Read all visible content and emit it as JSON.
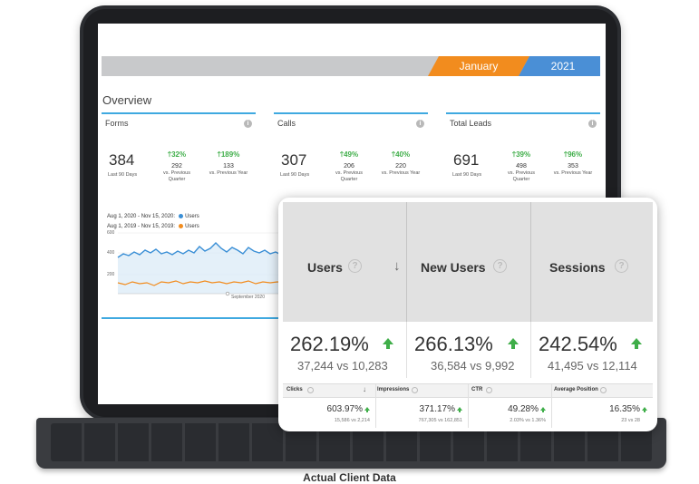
{
  "date_bar": {
    "month": "January",
    "year": "2021"
  },
  "overview": {
    "title": "Overview",
    "cards": [
      {
        "name": "Forms",
        "value": "384",
        "sub": "Last 90 Days",
        "cols": [
          {
            "pct": "32%",
            "num": "292",
            "lbl": "vs. Previous Quarter"
          },
          {
            "pct": "189%",
            "num": "133",
            "lbl": "vs. Previous Year"
          }
        ]
      },
      {
        "name": "Calls",
        "value": "307",
        "sub": "Last 90 Days",
        "cols": [
          {
            "pct": "49%",
            "num": "206",
            "lbl": "vs. Previous Quarter"
          },
          {
            "pct": "40%",
            "num": "220",
            "lbl": "vs. Previous Year"
          }
        ]
      },
      {
        "name": "Total Leads",
        "value": "691",
        "sub": "Last 90 Days",
        "cols": [
          {
            "pct": "39%",
            "num": "498",
            "lbl": "vs. Previous Quarter"
          },
          {
            "pct": "96%",
            "num": "353",
            "lbl": "vs. Previous Year"
          }
        ]
      }
    ],
    "info_glyph": "i"
  },
  "chart": {
    "legend": [
      {
        "range": "Aug 1, 2020 - Nov 15, 2020:",
        "series": "Users",
        "color": "#3a8fd6"
      },
      {
        "range": "Aug 1, 2019 - Nov 15, 2019:",
        "series": "Users",
        "color": "#f28c1e"
      }
    ],
    "y_ticks": [
      "600",
      "400",
      "200"
    ],
    "x_label": "September 2020"
  },
  "overlay": {
    "headers": [
      {
        "label": "Users"
      },
      {
        "label": "New Users"
      },
      {
        "label": "Sessions"
      }
    ],
    "qmark": "?",
    "sort_arrow": "↓",
    "values": [
      {
        "pct": "262.19%",
        "cmp": "37,244 vs 10,283"
      },
      {
        "pct": "266.13%",
        "cmp": "36,584 vs 9,992"
      },
      {
        "pct": "242.54%",
        "cmp": "41,495 vs 12,114"
      }
    ],
    "gsc": {
      "headers": [
        "Clicks",
        "Impressions",
        "CTR",
        "Average Position"
      ],
      "values": [
        {
          "val": "603.97%",
          "sub": "15,586 vs 2,214"
        },
        {
          "val": "371.17%",
          "sub": "767,305 vs 162,851"
        },
        {
          "val": "49.28%",
          "sub": "2.03% vs 1.36%"
        },
        {
          "val": "16.35%",
          "sub": "23 vs 28"
        }
      ],
      "sort_arrow": "↓"
    }
  },
  "caption": "Actual Client Data",
  "colors": {
    "accent_blue": "#3fa9e0",
    "up_green": "#3fae49",
    "month_orange": "#f28c1e",
    "year_blue": "#4a8fd6"
  }
}
